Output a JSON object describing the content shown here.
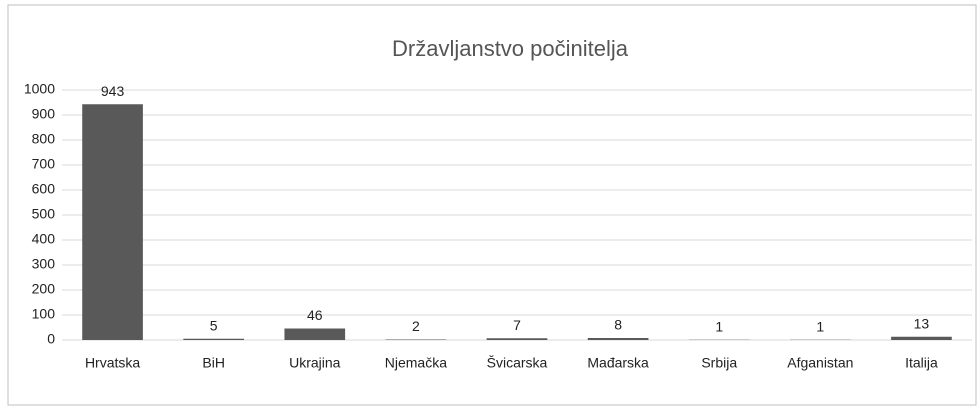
{
  "chart_data": {
    "type": "bar",
    "title": "Državljanstvo počinitelja",
    "categories": [
      "Hrvatska",
      "BiH",
      "Ukrajina",
      "Njemačka",
      "Švicarska",
      "Mađarska",
      "Srbija",
      "Afganistan",
      "Italija"
    ],
    "values": [
      943,
      5,
      46,
      2,
      7,
      8,
      1,
      1,
      13
    ],
    "color": "#595959",
    "ylim": [
      0,
      1000
    ],
    "yticks": [
      0,
      100,
      200,
      300,
      400,
      500,
      600,
      700,
      800,
      900,
      1000
    ],
    "grid": true
  }
}
